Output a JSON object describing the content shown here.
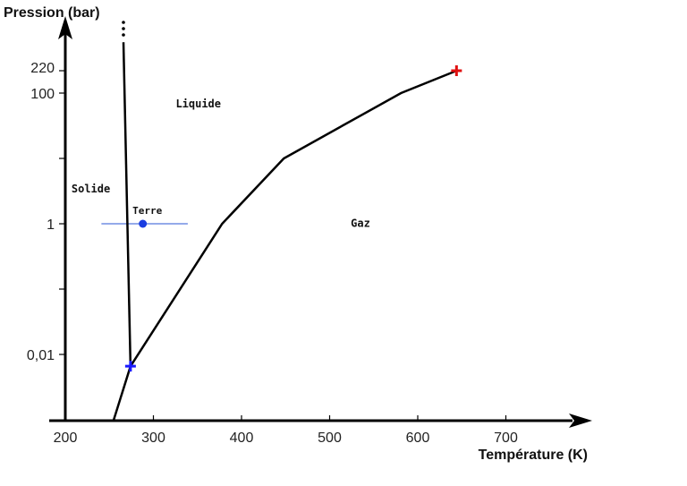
{
  "chart_data": {
    "type": "line",
    "title": "",
    "xlabel": "Température (K)",
    "ylabel": "Pression (bar)",
    "x_scale": "linear",
    "y_scale": "log",
    "xlim": [
      200,
      790
    ],
    "ylim": [
      0.001,
      2000
    ],
    "x_ticks": [
      200,
      300,
      400,
      500,
      600,
      700
    ],
    "x_tick_labels": [
      "200",
      "300",
      "400",
      "500",
      "600",
      "700"
    ],
    "y_ticks": [
      0.01,
      0.1,
      1,
      10,
      100,
      220
    ],
    "y_tick_labels": [
      "0,01",
      "",
      "1",
      "",
      "100",
      "220"
    ],
    "series": [
      {
        "name": "sublimation",
        "color": "#000000",
        "x": [
          255,
          274
        ],
        "y": [
          0.001,
          0.0066
        ]
      },
      {
        "name": "fusion",
        "color": "#000000",
        "x": [
          274,
          266
        ],
        "y": [
          0.0066,
          600
        ]
      },
      {
        "name": "vaporisation",
        "color": "#000000",
        "x": [
          274,
          378,
          448,
          581,
          644
        ],
        "y": [
          0.0066,
          1,
          10,
          100,
          220
        ]
      }
    ],
    "points": [
      {
        "name": "triple-point",
        "marker": "cross",
        "color": "#1a1aff",
        "x": 274,
        "y": 0.0066
      },
      {
        "name": "critical-point",
        "marker": "cross",
        "color": "#e01010",
        "x": 644,
        "y": 220
      },
      {
        "name": "earth-point",
        "label": "Terre",
        "marker": "dot",
        "color": "#1a3de0",
        "x": 288,
        "y": 1
      }
    ],
    "earth_line": {
      "color": "#5577dd",
      "x": [
        241,
        339
      ],
      "y": 1
    },
    "regions": [
      {
        "label": "Solide",
        "x": 229,
        "y": 3
      },
      {
        "label": "Liquide",
        "x": 351,
        "y": 60
      },
      {
        "label": "Gaz",
        "x": 535,
        "y": 0.9
      }
    ]
  }
}
